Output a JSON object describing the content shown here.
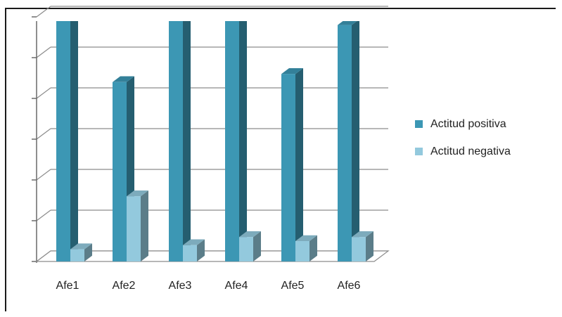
{
  "chart_data": {
    "type": "bar",
    "title": "",
    "xlabel": "",
    "ylabel": "",
    "grid": true,
    "legend_position": "right",
    "categories": [
      "Afe1",
      "Afe2",
      "Afe3",
      "Afe4",
      "Afe5",
      "Afe6"
    ],
    "ylim": [
      0,
      6
    ],
    "series": [
      {
        "name": "Actitud positiva",
        "values": [
          6.0,
          4.4,
          6.0,
          6.0,
          4.6,
          5.8
        ],
        "color": "#3c97b4"
      },
      {
        "name": "Actitud negativa",
        "values": [
          0.3,
          1.6,
          0.4,
          0.6,
          0.5,
          0.6
        ],
        "color": "#93c9dd"
      }
    ]
  }
}
